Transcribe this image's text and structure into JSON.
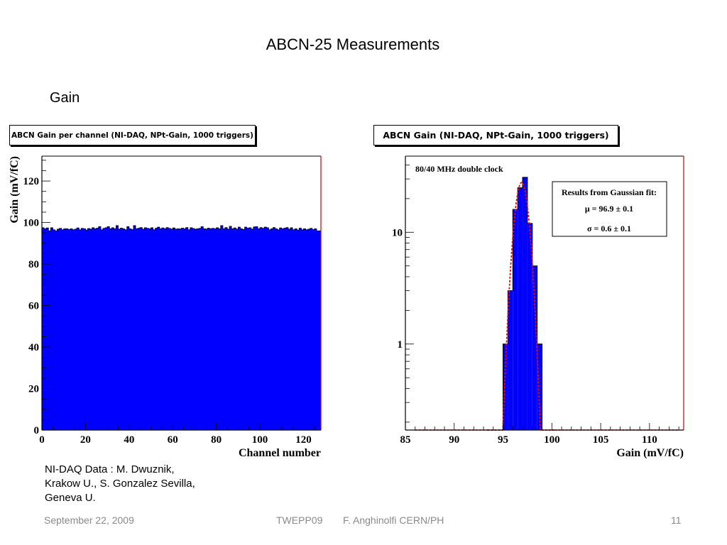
{
  "slide": {
    "title": "ABCN-25 Measurements",
    "section": "Gain",
    "credit_lines": [
      "NI-DAQ Data : M. Dwuznik,",
      "Krakow U., S. Gonzalez Sevilla,",
      "Geneva U."
    ],
    "footer": {
      "date": "September 22, 2009",
      "conference": "TWEPP09",
      "author": "F. Anghinolfi CERN/PH",
      "page": "11"
    }
  },
  "colors": {
    "bar_fill": "#0000ff",
    "fit_line": "#ff0000",
    "axis": "#000000",
    "frame_right": "#cc0000"
  },
  "chart_data": [
    {
      "type": "bar",
      "title": "ABCN Gain per channel (NI-DAQ, NPt-Gain, 1000 triggers)",
      "xlabel": "Channel number",
      "ylabel": "Gain (mV/fC)",
      "xlim": [
        0,
        128
      ],
      "ylim": [
        0,
        132
      ],
      "xticks": [
        0,
        20,
        40,
        60,
        80,
        100,
        120
      ],
      "yticks": [
        0,
        20,
        40,
        60,
        80,
        100,
        120
      ],
      "values": [
        97.5,
        97.0,
        97.4,
        96.0,
        97.5,
        96.5,
        96.0,
        96.8,
        97.2,
        96.5,
        97.0,
        97.0,
        96.6,
        97.0,
        96.5,
        96.8,
        97.4,
        96.5,
        97.2,
        97.0,
        96.4,
        97.1,
        96.8,
        97.5,
        97.0,
        97.3,
        98.0,
        96.5,
        97.2,
        97.5,
        98.0,
        97.0,
        97.5,
        97.0,
        98.5,
        96.8,
        97.3,
        97.0,
        96.5,
        98.0,
        97.0,
        96.6,
        98.5,
        97.0,
        97.3,
        97.6,
        96.8,
        97.5,
        97.2,
        97.0,
        97.5,
        96.5,
        97.3,
        97.8,
        97.0,
        97.4,
        97.0,
        97.6,
        97.2,
        96.8,
        97.4,
        96.8,
        97.0,
        96.9,
        97.3,
        97.0,
        97.6,
        96.5,
        97.5,
        97.1,
        96.8,
        97.0,
        97.2,
        98.0,
        97.0,
        96.9,
        97.3,
        97.0,
        97.2,
        97.0,
        97.5,
        97.0,
        98.5,
        97.0,
        97.6,
        96.8,
        98.2,
        97.0,
        97.4,
        96.8,
        97.8,
        97.0,
        96.7,
        97.8,
        97.3,
        97.5,
        96.8,
        97.9,
        98.0,
        97.0,
        97.6,
        97.2,
        97.8,
        97.5,
        96.5,
        97.0,
        97.6,
        97.0,
        96.5,
        97.4,
        97.0,
        97.3,
        97.6,
        96.8,
        97.5,
        96.5,
        97.0,
        96.4,
        97.3,
        96.5,
        97.0,
        96.5,
        96.8,
        97.2,
        96.6,
        97.0,
        96.0,
        96.0
      ]
    },
    {
      "type": "bar",
      "title": "ABCN Gain (NI-DAQ, NPt-Gain, 1000 triggers)",
      "xlabel": "Gain (mV/fC)",
      "ylabel": "",
      "y_scale": "log",
      "xlim": [
        85,
        113.5
      ],
      "ylim": [
        0.17,
        48
      ],
      "xticks": [
        85,
        90,
        95,
        100,
        105,
        110
      ],
      "yticks": [
        1,
        10
      ],
      "annotation": "80/40 MHz double clock",
      "fit_box": {
        "title": "Results from Gaussian fit:",
        "mu": "μ = 96.9 ± 0.1",
        "sigma": "σ = 0.6 ± 0.1"
      },
      "fit": {
        "mu": 96.9,
        "sigma": 0.6
      },
      "bins": [
        {
          "lo": 95.0,
          "hi": 95.5,
          "count": 1
        },
        {
          "lo": 95.5,
          "hi": 96.0,
          "count": 3
        },
        {
          "lo": 96.0,
          "hi": 96.5,
          "count": 16
        },
        {
          "lo": 96.5,
          "hi": 97.0,
          "count": 25
        },
        {
          "lo": 97.0,
          "hi": 97.5,
          "count": 31
        },
        {
          "lo": 97.5,
          "hi": 98.0,
          "count": 12
        },
        {
          "lo": 98.0,
          "hi": 98.5,
          "count": 5
        },
        {
          "lo": 98.5,
          "hi": 99.0,
          "count": 1
        }
      ]
    }
  ]
}
